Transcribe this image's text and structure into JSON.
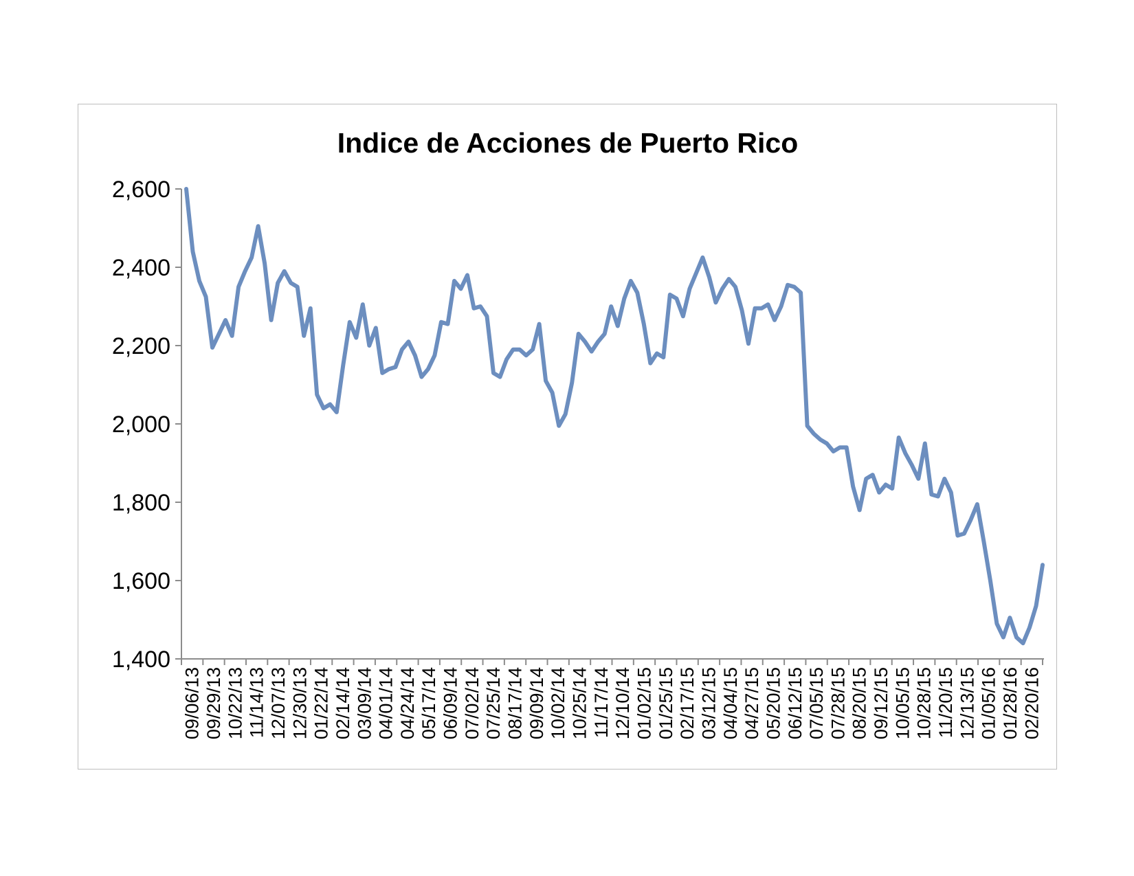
{
  "chart_data": {
    "type": "line",
    "title": "Indice de Acciones de Puerto Rico",
    "xlabel": "",
    "ylabel": "",
    "ylim": [
      1400,
      2600
    ],
    "yticks": [
      "2,600",
      "2,400",
      "2,200",
      "2,000",
      "1,800",
      "1,600",
      "1,400"
    ],
    "ytick_values": [
      2600,
      2400,
      2200,
      2000,
      1800,
      1600,
      1400
    ],
    "xtick_labels": [
      "09/06/13",
      "09/29/13",
      "10/22/13",
      "11/14/13",
      "12/07/13",
      "12/30/13",
      "01/22/14",
      "02/14/14",
      "03/09/14",
      "04/01/14",
      "04/24/14",
      "05/17/14",
      "06/09/14",
      "07/02/14",
      "07/25/14",
      "08/17/14",
      "09/09/14",
      "10/02/14",
      "10/25/14",
      "11/17/14",
      "12/10/14",
      "01/02/15",
      "01/25/15",
      "02/17/15",
      "03/12/15",
      "04/04/15",
      "04/27/15",
      "05/20/15",
      "06/12/15",
      "07/05/15",
      "07/28/15",
      "08/20/15",
      "09/12/15",
      "10/05/15",
      "10/28/15",
      "11/20/15",
      "12/13/15",
      "01/05/16",
      "01/28/16",
      "02/20/16"
    ],
    "grid": false,
    "legend": "none",
    "line_color": "#6C8EBF",
    "series": [
      {
        "values": [
          2600,
          2440,
          2365,
          2325,
          2195,
          2230,
          2265,
          2225,
          2350,
          2390,
          2425,
          2505,
          2410,
          2265,
          2360,
          2390,
          2360,
          2350,
          2225,
          2295,
          2075,
          2040,
          2050,
          2030,
          2150,
          2260,
          2220,
          2305,
          2200,
          2245,
          2130,
          2140,
          2145,
          2190,
          2210,
          2175,
          2120,
          2140,
          2175,
          2260,
          2255,
          2365,
          2345,
          2380,
          2295,
          2300,
          2275,
          2130,
          2120,
          2165,
          2190,
          2190,
          2175,
          2190,
          2255,
          2110,
          2080,
          1995,
          2025,
          2105,
          2230,
          2210,
          2185,
          2210,
          2230,
          2300,
          2250,
          2320,
          2365,
          2335,
          2255,
          2155,
          2180,
          2170,
          2330,
          2320,
          2275,
          2345,
          2385,
          2425,
          2375,
          2310,
          2345,
          2370,
          2350,
          2290,
          2205,
          2295,
          2295,
          2305,
          2265,
          2300,
          2355,
          2350,
          2335,
          1995,
          1975,
          1960,
          1950,
          1930,
          1940,
          1940,
          1840,
          1780,
          1860,
          1870,
          1825,
          1845,
          1835,
          1965,
          1925,
          1895,
          1860,
          1950,
          1820,
          1815,
          1860,
          1825,
          1715,
          1720,
          1755,
          1795,
          1700,
          1600,
          1490,
          1455,
          1505,
          1455,
          1440,
          1480,
          1535,
          1640
        ]
      }
    ]
  }
}
